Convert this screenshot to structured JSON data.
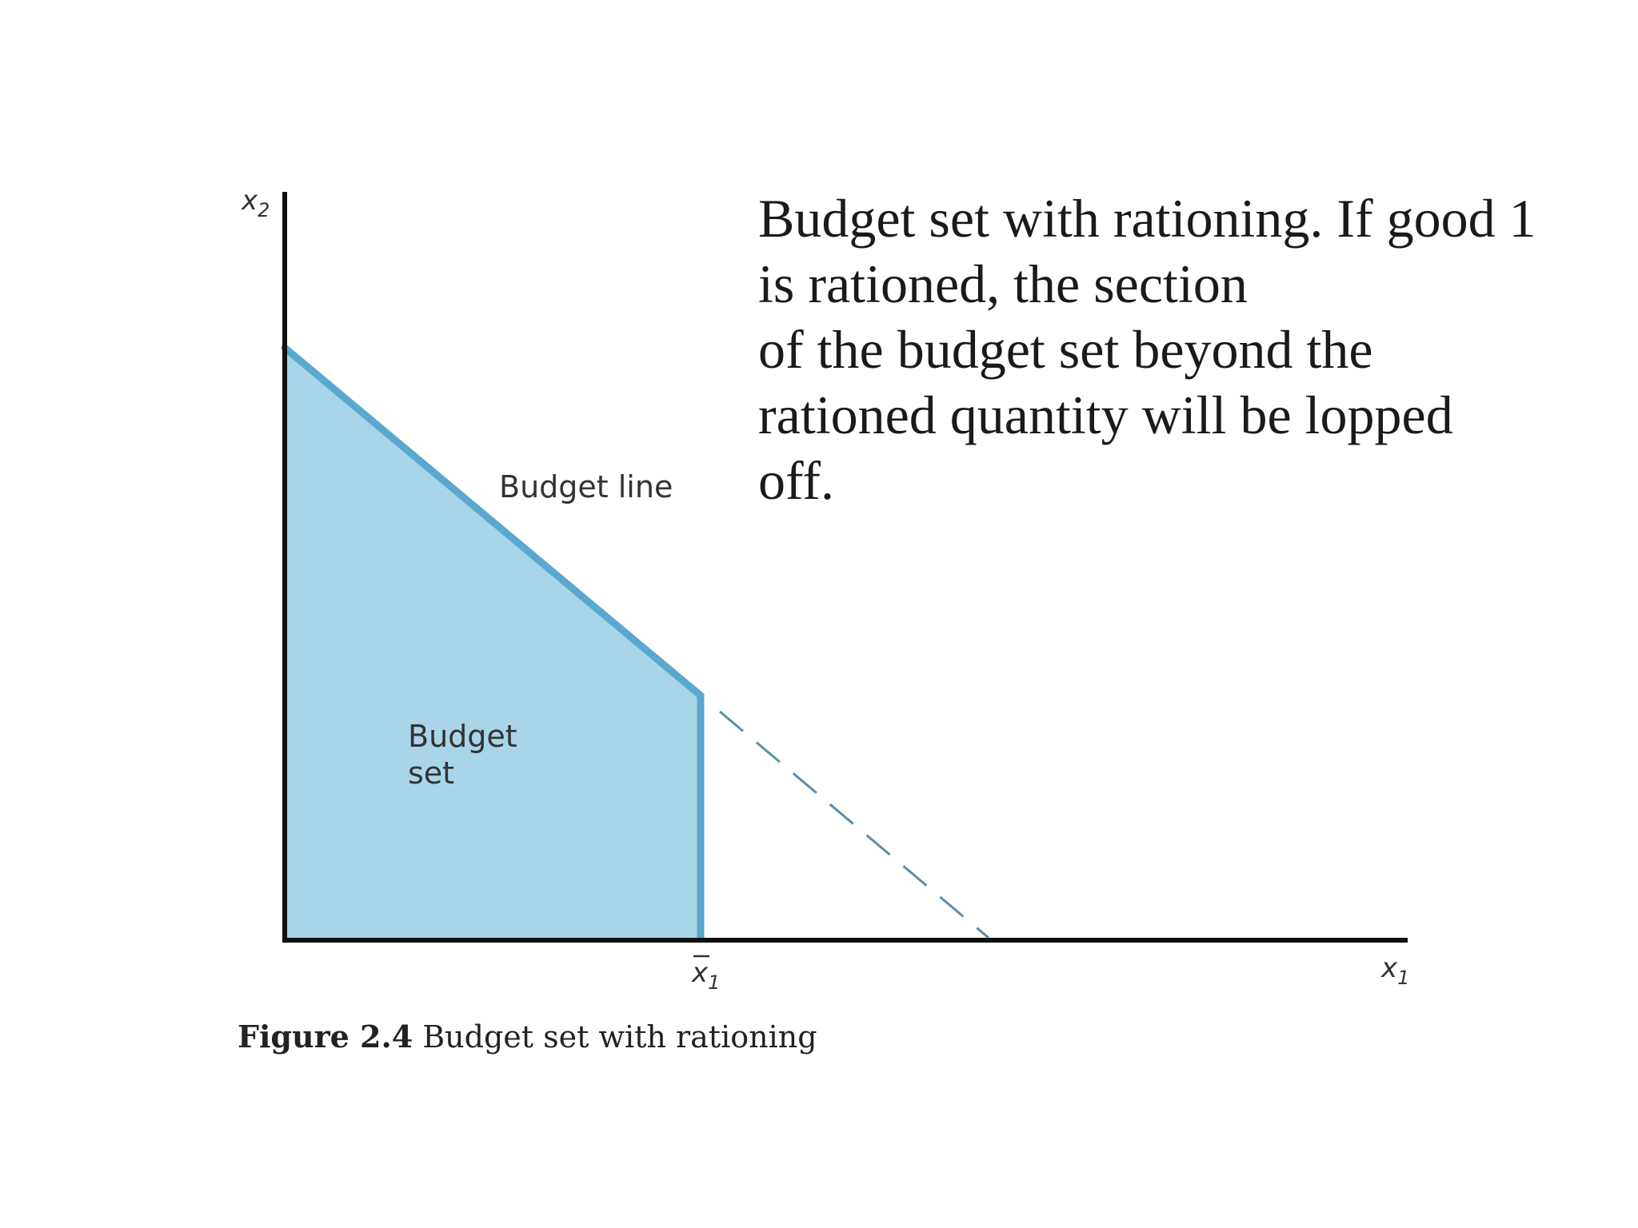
{
  "diagram": {
    "y_axis_label": "x",
    "y_axis_subscript": "2",
    "x_axis_label": "x",
    "x_axis_subscript": "1",
    "ration_tick_label": "x",
    "ration_tick_subscript": "1",
    "budget_line_label": "Budget line",
    "budget_set_label_line1": "Budget",
    "budget_set_label_line2": "set",
    "colors": {
      "budget_set_fill": "#a8d5e8",
      "budget_line": "#5aa8cf",
      "axes": "#111111",
      "dashed_line": "#5a8fa8"
    }
  },
  "description": {
    "lines": [
      "Budget set with rationing. If good 1",
      "is rationed, the section",
      "of the budget set beyond the",
      "rationed quantity will be lopped",
      "off."
    ]
  },
  "caption": {
    "number": "Figure 2.4",
    "text": "Budget set with rationing"
  }
}
